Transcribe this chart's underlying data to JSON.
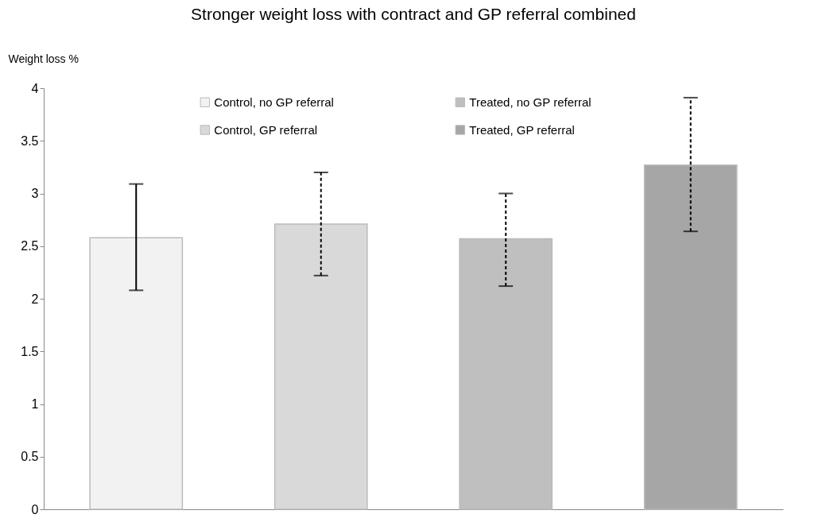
{
  "chart_data": {
    "type": "bar",
    "title": "Stronger weight loss with contract and GP referral combined",
    "ylabel": "Weight loss %",
    "categories": [
      null,
      null,
      null,
      null
    ],
    "ylim": [
      0,
      4
    ],
    "yticks": [
      0,
      0.5,
      1,
      1.5,
      2,
      2.5,
      3,
      3.5,
      4
    ],
    "grid": false,
    "legend": "top",
    "series": [
      {
        "name": "Control, no GP referral",
        "color": "#f2f2f2",
        "values": [
          2.58,
          null,
          null,
          null
        ],
        "errors": [
          [
            2.08,
            3.09
          ],
          null,
          null,
          null
        ],
        "line_style": "solid"
      },
      {
        "name": "Control, GP referral",
        "color": "#d9d9d9",
        "values": [
          null,
          2.71,
          null,
          null
        ],
        "errors": [
          null,
          [
            2.22,
            3.2
          ],
          null,
          null
        ],
        "line_style": "dashed"
      },
      {
        "name": "Treated, no GP referral",
        "color": "#bfbfbf",
        "values": [
          null,
          null,
          2.57,
          null
        ],
        "errors": [
          null,
          null,
          [
            2.12,
            3.0
          ],
          null
        ],
        "line_style": "dashed"
      },
      {
        "name": "Treated, GP referral",
        "color": "#a6a6a6",
        "values": [
          null,
          null,
          null,
          3.27
        ],
        "errors": [
          null,
          null,
          null,
          [
            2.64,
            3.91
          ]
        ],
        "line_style": "dashed"
      }
    ]
  }
}
